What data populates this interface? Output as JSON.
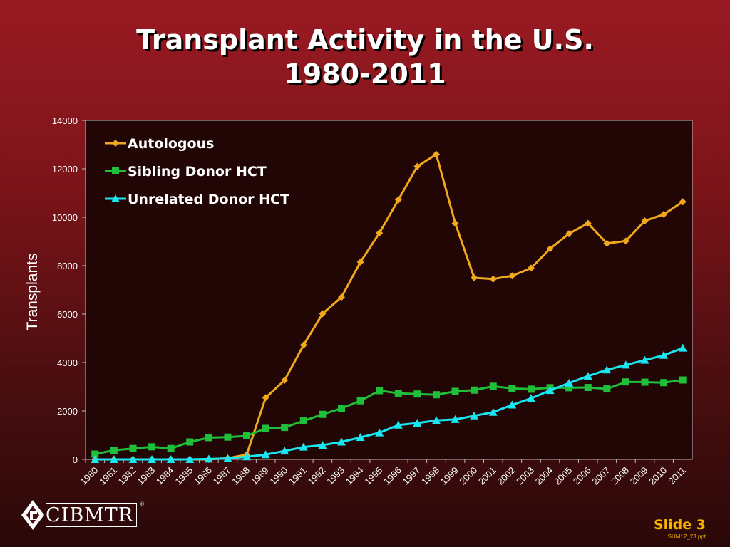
{
  "title_line1": "Transplant Activity in the U.S.",
  "title_line2": "1980-2011",
  "logo_text": "CIBMTR",
  "logo_mark": "®",
  "slide_label": "Slide 3",
  "file_name": "SUM12_23.ppt",
  "chart_data": {
    "type": "line",
    "xlabel": "",
    "ylabel": "Transplants",
    "ylim": [
      0,
      14000
    ],
    "yticks": [
      0,
      2000,
      4000,
      6000,
      8000,
      10000,
      12000,
      14000
    ],
    "categories": [
      "1980",
      "1981",
      "1982",
      "1983",
      "1984",
      "1985",
      "1986",
      "1987",
      "1988",
      "1989",
      "1990",
      "1991",
      "1992",
      "1993",
      "1994",
      "1995",
      "1996",
      "1997",
      "1998",
      "1999",
      "2000",
      "2001",
      "2002",
      "2003",
      "2004",
      "2005",
      "2006",
      "2007",
      "2008",
      "2009",
      "2010",
      "2011"
    ],
    "grid": false,
    "legend": "top-left",
    "series": [
      {
        "name": "Autologous",
        "color": "#f0a81c",
        "marker": "diamond",
        "values": [
          0,
          0,
          0,
          0,
          0,
          0,
          0,
          50,
          200,
          2550,
          3270,
          4720,
          6020,
          6700,
          8150,
          9350,
          10720,
          12100,
          12600,
          9750,
          7500,
          7450,
          7580,
          7900,
          8700,
          9320,
          9750,
          8920,
          9020,
          9850,
          10120,
          10640
        ]
      },
      {
        "name": "Sibling Donor HCT",
        "color": "#1fbf3a",
        "marker": "square",
        "values": [
          220,
          380,
          450,
          520,
          450,
          720,
          900,
          920,
          970,
          1280,
          1320,
          1590,
          1860,
          2110,
          2420,
          2840,
          2730,
          2700,
          2670,
          2810,
          2860,
          3020,
          2930,
          2900,
          2960,
          2960,
          2970,
          2910,
          3200,
          3190,
          3170,
          3280
        ]
      },
      {
        "name": "Unrelated Donor HCT",
        "color": "#19e6f0",
        "marker": "triangle",
        "values": [
          0,
          0,
          0,
          0,
          0,
          0,
          20,
          40,
          110,
          200,
          350,
          510,
          590,
          720,
          910,
          1100,
          1420,
          1500,
          1610,
          1650,
          1800,
          1950,
          2250,
          2520,
          2850,
          3150,
          3440,
          3700,
          3900,
          4100,
          4300,
          4600
        ]
      }
    ]
  }
}
